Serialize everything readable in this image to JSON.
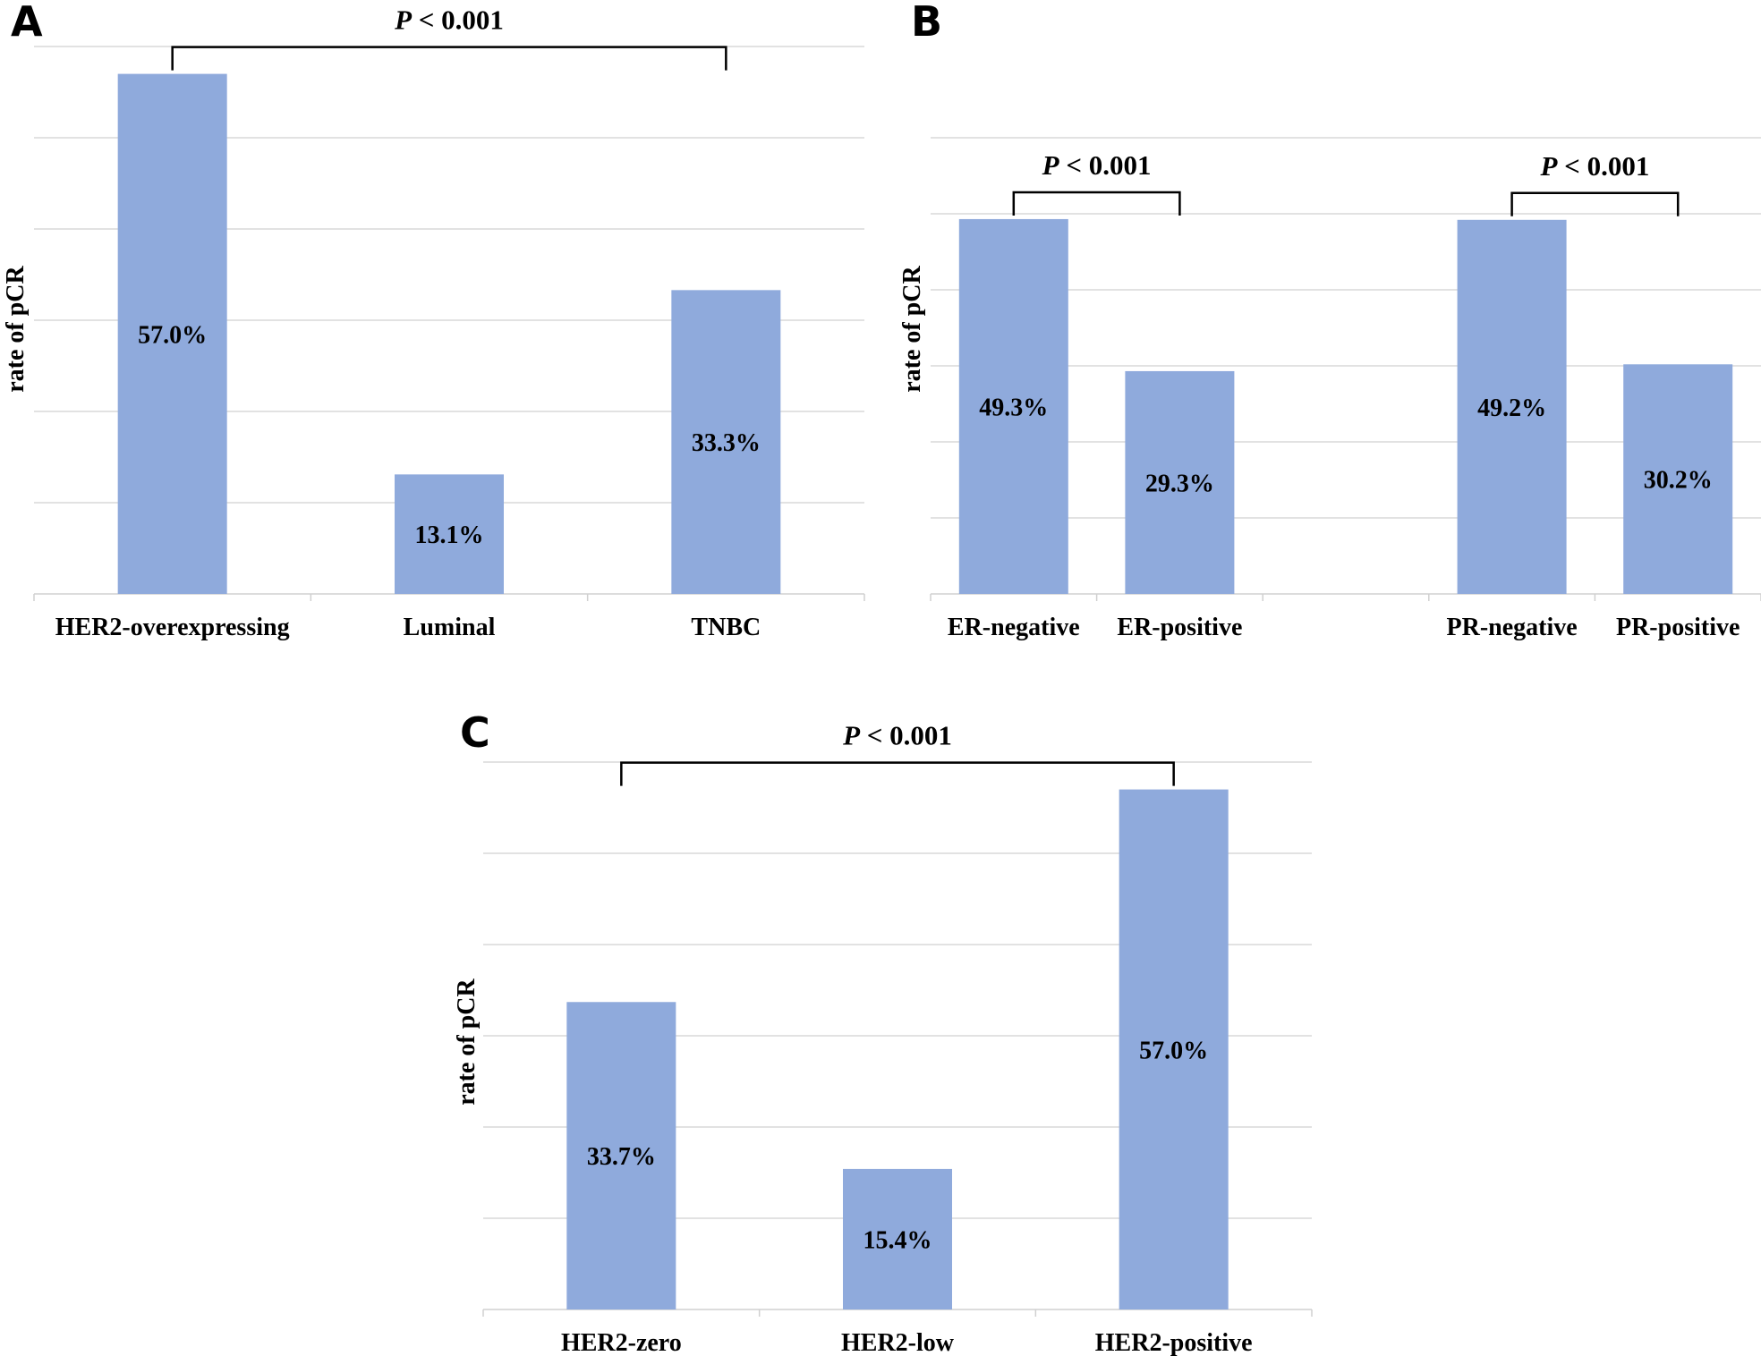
{
  "chart_data": [
    {
      "panel": "A",
      "type": "bar",
      "ylabel": "rate of pCR",
      "categories": [
        "HER2-overexpressing",
        "Luminal",
        "TNBC"
      ],
      "values": [
        57.0,
        13.1,
        33.3
      ],
      "value_labels": [
        "57.0%",
        "13.1%",
        "33.3%"
      ],
      "ylim": [
        0,
        60
      ],
      "grid_step": 10,
      "significance": [
        {
          "between": [
            0,
            2
          ],
          "text_italic": "P",
          "text_rest": " < 0.001"
        }
      ]
    },
    {
      "panel": "B",
      "type": "bar",
      "ylabel": "rate of pCR",
      "categories": [
        "ER-negative",
        "ER-positive",
        "",
        "PR-negative",
        "PR-positive"
      ],
      "values": [
        49.3,
        29.3,
        null,
        49.2,
        30.2
      ],
      "value_labels": [
        "49.3%",
        "29.3%",
        "",
        "49.2%",
        "30.2%"
      ],
      "ylim": [
        0,
        60
      ],
      "grid_step": 10,
      "significance": [
        {
          "between": [
            0,
            1
          ],
          "text_italic": "P",
          "text_rest": " < 0.001"
        },
        {
          "between": [
            3,
            4
          ],
          "text_italic": "P",
          "text_rest": " < 0.001"
        }
      ]
    },
    {
      "panel": "C",
      "type": "bar",
      "ylabel": "rate of pCR",
      "categories": [
        "HER2-zero",
        "HER2-low",
        "HER2-positive"
      ],
      "values": [
        33.7,
        15.4,
        57.0
      ],
      "value_labels": [
        "33.7%",
        "15.4%",
        "57.0%"
      ],
      "ylim": [
        0,
        60
      ],
      "grid_step": 10,
      "significance": [
        {
          "between": [
            0,
            2
          ],
          "text_italic": "P",
          "text_rest": " < 0.001"
        }
      ]
    }
  ],
  "colors": {
    "bar": "#8faadc",
    "grid": "#d9d9d9",
    "text": "#000000"
  }
}
